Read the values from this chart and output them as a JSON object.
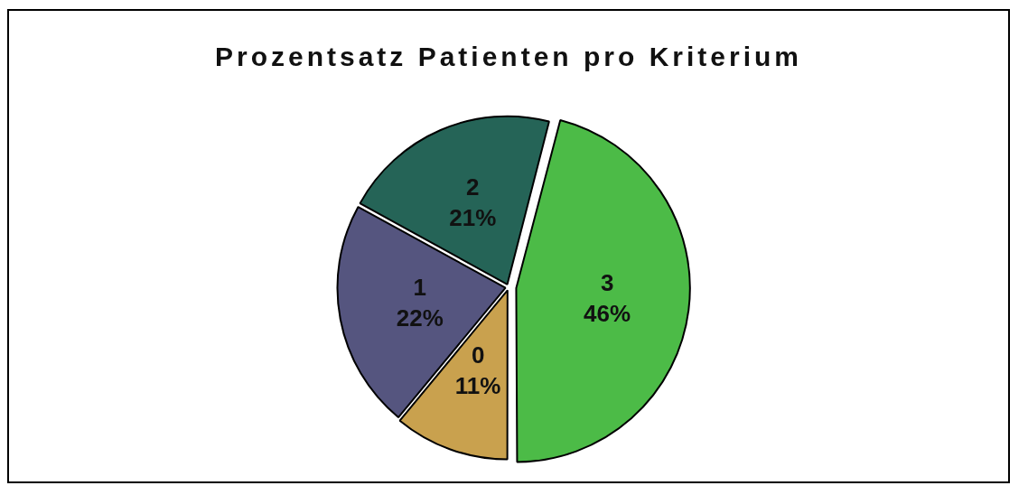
{
  "chart_data": {
    "type": "pie",
    "title": "Prozentsatz Patienten pro Kriterium",
    "categories": [
      "0",
      "1",
      "2",
      "3"
    ],
    "values": [
      11,
      22,
      21,
      46
    ],
    "colors": [
      "#c9a14e",
      "#55557f",
      "#256457",
      "#4cbb47"
    ],
    "value_labels": [
      "11%",
      "22%",
      "21%",
      "46%"
    ]
  }
}
